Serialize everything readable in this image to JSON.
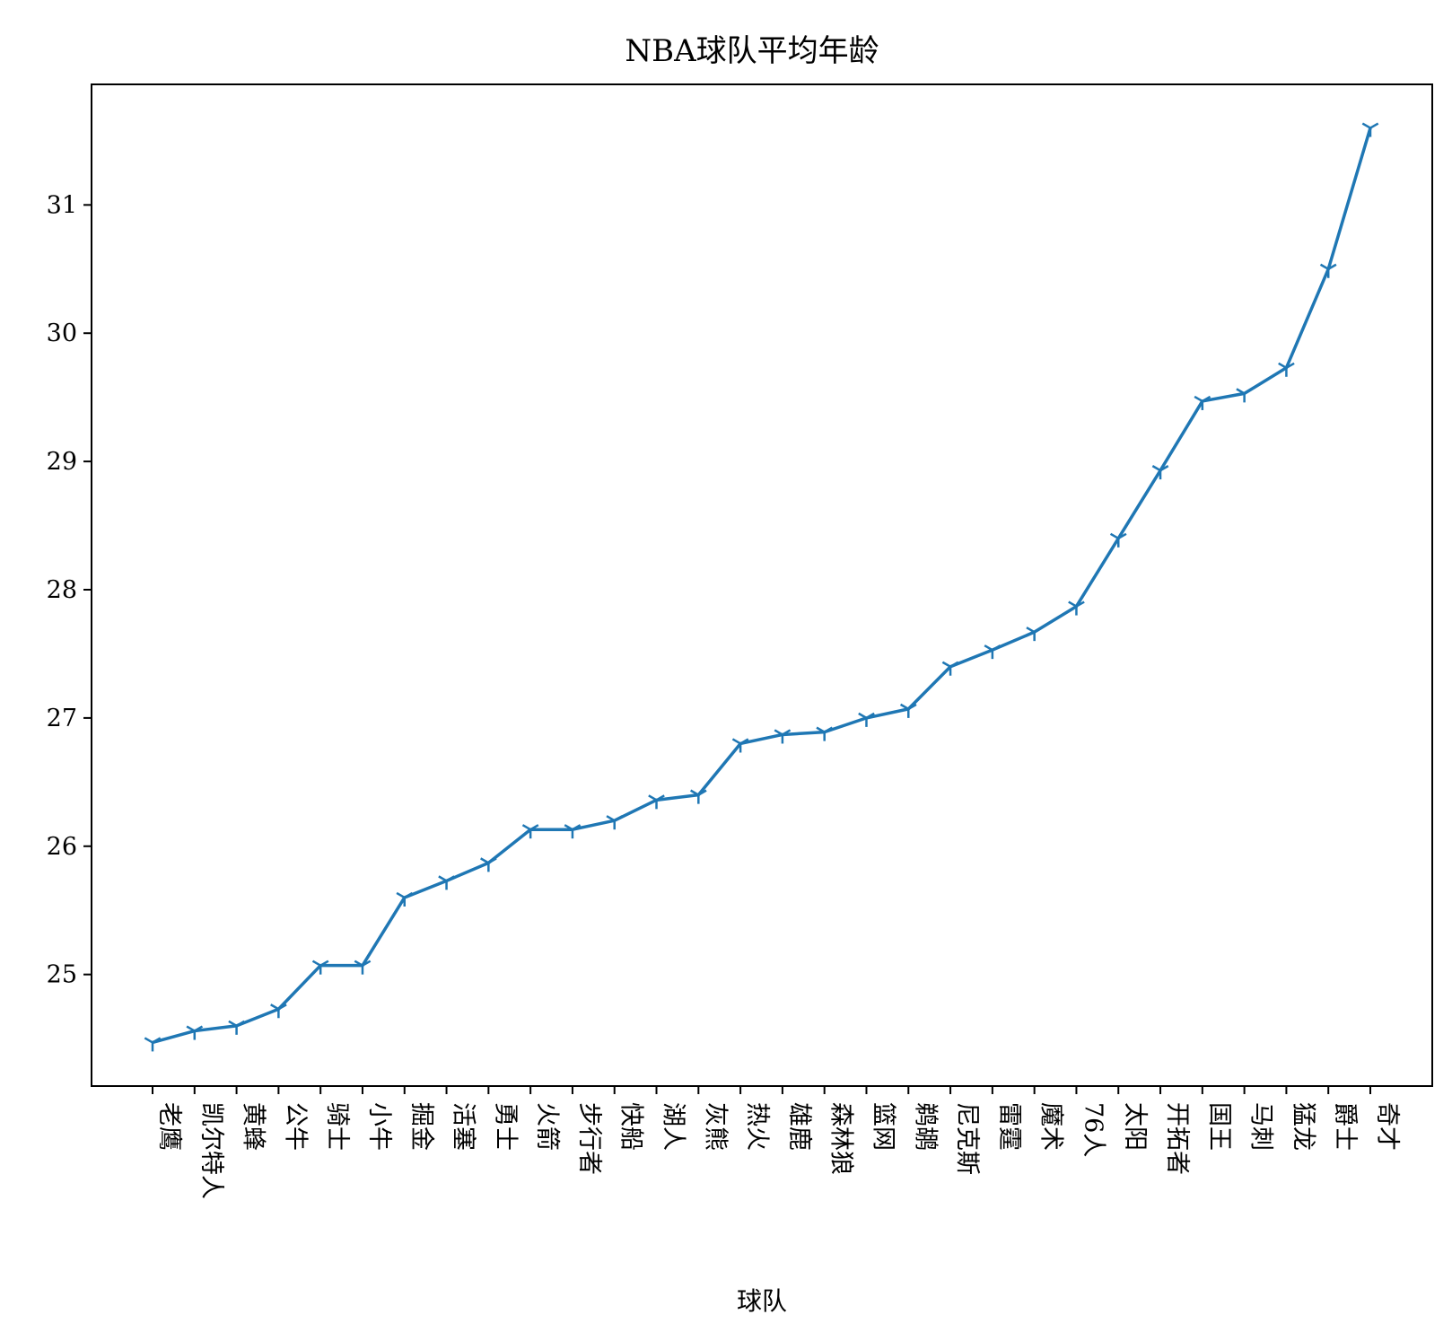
{
  "chart_data": {
    "type": "line",
    "title": "NBA球队平均年龄",
    "xlabel": "球队",
    "ylabel": "",
    "grid": false,
    "legend": "none",
    "marker": "tri-down",
    "line_color": "#1f77b4",
    "categories": [
      "老鹰",
      "凯尔特人",
      "黄蜂",
      "公牛",
      "骑士",
      "小牛",
      "掘金",
      "活塞",
      "勇士",
      "火箭",
      "步行者",
      "快船",
      "湖人",
      "灰熊",
      "热火",
      "雄鹿",
      "森林狼",
      "篮网",
      "鹈鹕",
      "尼克斯",
      "雷霆",
      "魔术",
      "76人",
      "太阳",
      "开拓者",
      "国王",
      "马刺",
      "猛龙",
      "爵士",
      "奇才"
    ],
    "values": [
      24.47,
      24.56,
      24.6,
      24.73,
      25.07,
      25.07,
      25.6,
      25.73,
      25.87,
      26.13,
      26.13,
      26.2,
      26.36,
      26.4,
      26.8,
      26.87,
      26.89,
      27.0,
      27.07,
      27.4,
      27.53,
      27.67,
      27.87,
      28.4,
      28.93,
      29.47,
      29.53,
      29.73,
      30.5,
      31.6
    ],
    "yticks": [
      25,
      26,
      27,
      28,
      29,
      30,
      31
    ],
    "ylim": [
      24.13,
      31.94
    ]
  }
}
